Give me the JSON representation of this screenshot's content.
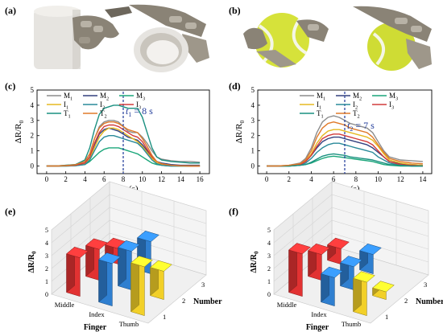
{
  "panels": {
    "a": "(a)",
    "b": "(b)",
    "c": "(c)",
    "d": "(d)",
    "e": "(e)",
    "f": "(f)"
  },
  "chart_data": [
    {
      "type": "line",
      "panel": "(c)",
      "xlabel": "Time (s)",
      "ylabel": "ΔR/R",
      "ylabel_sub": "0",
      "xlim": [
        -1,
        17
      ],
      "ylim": [
        -0.5,
        5
      ],
      "xticks": [
        0,
        2,
        4,
        6,
        8,
        10,
        12,
        14,
        16
      ],
      "yticks": [
        0,
        1,
        2,
        3,
        4,
        5
      ],
      "annotation": {
        "prefix": "t",
        "sub": "1",
        "suffix": " = 8 s",
        "x": 8
      },
      "legend": [
        {
          "name": "M",
          "sub": "1",
          "color": "#8c8c8c"
        },
        {
          "name": "M",
          "sub": "2",
          "color": "#33407f"
        },
        {
          "name": "M",
          "sub": "3",
          "color": "#1aa67a"
        },
        {
          "name": "I",
          "sub": "1",
          "color": "#e5b820"
        },
        {
          "name": "I",
          "sub": "2",
          "color": "#2a8a9a"
        },
        {
          "name": "I",
          "sub": "3",
          "color": "#d23b3b"
        },
        {
          "name": "T",
          "sub": "1",
          "color": "#1a9080"
        },
        {
          "name": "T",
          "sub": "2",
          "color": "#e07a2a"
        }
      ],
      "x": [
        0,
        1,
        2,
        3,
        4,
        4.5,
        5,
        5.5,
        6,
        6.5,
        7,
        7.5,
        8,
        8.5,
        9,
        9.5,
        10,
        10.5,
        11,
        11.5,
        12,
        12.5,
        13,
        14,
        15,
        16
      ],
      "series": [
        {
          "name": "M1",
          "color": "#8c8c8c",
          "values": [
            0,
            0,
            0.05,
            0.1,
            0.3,
            0.8,
            1.8,
            2.6,
            2.9,
            3.0,
            3.0,
            2.9,
            2.6,
            2.3,
            2.2,
            2.2,
            1.9,
            1.5,
            1.0,
            0.6,
            0.45,
            0.4,
            0.35,
            0.3,
            0.3,
            0.25
          ]
        },
        {
          "name": "M2",
          "color": "#33407f",
          "values": [
            0,
            0,
            0.02,
            0.05,
            0.2,
            0.6,
            1.4,
            2.1,
            2.4,
            2.5,
            2.4,
            2.3,
            2.1,
            1.9,
            1.8,
            1.7,
            1.4,
            1.0,
            0.6,
            0.3,
            0.2,
            0.15,
            0.1,
            0.05,
            0.05,
            0.05
          ]
        },
        {
          "name": "M3",
          "color": "#1aa67a",
          "values": [
            0,
            0,
            0,
            0.02,
            0.1,
            0.3,
            0.6,
            0.9,
            1.1,
            1.2,
            1.2,
            1.2,
            1.1,
            1.0,
            0.9,
            0.8,
            0.6,
            0.4,
            0.2,
            0.1,
            0.05,
            0.02,
            0,
            0,
            0,
            0
          ]
        },
        {
          "name": "I1",
          "color": "#e5b820",
          "values": [
            0,
            0,
            0.02,
            0.05,
            0.15,
            0.5,
            1.2,
            1.9,
            2.3,
            2.5,
            2.5,
            2.4,
            2.2,
            2.0,
            1.8,
            1.6,
            1.3,
            0.9,
            0.5,
            0.2,
            0.1,
            0.05,
            0.02,
            0,
            0,
            0
          ]
        },
        {
          "name": "I2",
          "color": "#2a8a9a",
          "values": [
            0,
            0,
            0,
            0.03,
            0.1,
            0.4,
            1.0,
            1.6,
            1.9,
            2.0,
            2.0,
            1.9,
            1.8,
            1.7,
            1.6,
            1.5,
            1.2,
            0.8,
            0.4,
            0.15,
            0.05,
            0.02,
            0,
            0,
            0,
            0
          ]
        },
        {
          "name": "I3",
          "color": "#d23b3b",
          "values": [
            0,
            0,
            0.02,
            0.05,
            0.2,
            0.6,
            1.5,
            2.2,
            2.6,
            2.7,
            2.7,
            2.6,
            2.4,
            2.2,
            2.0,
            1.9,
            1.6,
            1.1,
            0.6,
            0.3,
            0.15,
            0.1,
            0.05,
            0.02,
            0,
            0
          ]
        },
        {
          "name": "T1",
          "color": "#1a9080",
          "values": [
            0,
            0,
            0.05,
            0.1,
            0.4,
            1.2,
            2.4,
            3.4,
            3.8,
            3.9,
            4.0,
            4.0,
            3.9,
            3.8,
            3.8,
            3.8,
            3.2,
            2.2,
            1.2,
            0.6,
            0.4,
            0.35,
            0.3,
            0.25,
            0.2,
            0.2
          ]
        },
        {
          "name": "T2",
          "color": "#e07a2a",
          "values": [
            0,
            0,
            0.03,
            0.08,
            0.3,
            0.8,
            1.8,
            2.5,
            2.8,
            2.9,
            2.9,
            2.8,
            2.6,
            2.4,
            2.3,
            2.2,
            1.8,
            1.3,
            0.7,
            0.3,
            0.15,
            0.1,
            0.05,
            0.02,
            0,
            0
          ]
        }
      ]
    },
    {
      "type": "line",
      "panel": "(d)",
      "xlabel": "Time (s)",
      "ylabel": "ΔR/R",
      "ylabel_sub": "0",
      "xlim": [
        -0.8,
        14.8
      ],
      "ylim": [
        -0.5,
        5
      ],
      "xticks": [
        0,
        2,
        4,
        6,
        8,
        10,
        12,
        14
      ],
      "yticks": [
        0,
        1,
        2,
        3,
        4,
        5
      ],
      "annotation": {
        "prefix": "t",
        "sub": "2",
        "suffix": " = 7 s",
        "x": 7
      },
      "legend": [
        {
          "name": "M",
          "sub": "1",
          "color": "#8c8c8c"
        },
        {
          "name": "M",
          "sub": "2",
          "color": "#33407f"
        },
        {
          "name": "M",
          "sub": "3",
          "color": "#1aa67a"
        },
        {
          "name": "I",
          "sub": "1",
          "color": "#e5b820"
        },
        {
          "name": "I",
          "sub": "2",
          "color": "#2a8a9a"
        },
        {
          "name": "I",
          "sub": "3",
          "color": "#d23b3b"
        },
        {
          "name": "T",
          "sub": "1",
          "color": "#1a9080"
        },
        {
          "name": "T",
          "sub": "2",
          "color": "#e07a2a"
        }
      ],
      "x": [
        0,
        1,
        2,
        3,
        3.5,
        4,
        4.5,
        5,
        5.5,
        6,
        6.5,
        7,
        7.5,
        8,
        8.5,
        9,
        9.5,
        10,
        10.5,
        11,
        12,
        13,
        14
      ],
      "series": [
        {
          "name": "M1",
          "color": "#8c8c8c",
          "values": [
            0,
            0,
            0.05,
            0.2,
            0.5,
            1.2,
            2.2,
            2.9,
            3.2,
            3.3,
            3.2,
            3.0,
            2.8,
            2.7,
            2.6,
            2.5,
            2.2,
            1.6,
            1.0,
            0.6,
            0.4,
            0.35,
            0.3
          ]
        },
        {
          "name": "M2",
          "color": "#33407f",
          "values": [
            0,
            0,
            0.02,
            0.1,
            0.3,
            0.7,
            1.2,
            1.6,
            1.8,
            1.9,
            1.9,
            1.8,
            1.7,
            1.6,
            1.5,
            1.4,
            1.2,
            0.9,
            0.6,
            0.3,
            0.15,
            0.1,
            0.05
          ]
        },
        {
          "name": "M3",
          "color": "#1aa67a",
          "values": [
            0,
            0,
            0,
            0.05,
            0.1,
            0.2,
            0.35,
            0.5,
            0.6,
            0.65,
            0.6,
            0.55,
            0.5,
            0.45,
            0.4,
            0.35,
            0.3,
            0.2,
            0.1,
            0.05,
            0,
            0,
            0
          ]
        },
        {
          "name": "I1",
          "color": "#e5b820",
          "values": [
            0,
            0,
            0.02,
            0.1,
            0.3,
            0.8,
            1.5,
            2.0,
            2.3,
            2.4,
            2.4,
            2.3,
            2.2,
            2.1,
            2.0,
            1.9,
            1.7,
            1.3,
            0.8,
            0.4,
            0.2,
            0.1,
            0.05
          ]
        },
        {
          "name": "I2",
          "color": "#2a8a9a",
          "values": [
            0,
            0,
            0,
            0.05,
            0.2,
            0.5,
            0.9,
            1.2,
            1.4,
            1.5,
            1.5,
            1.4,
            1.3,
            1.2,
            1.1,
            1.0,
            0.9,
            0.6,
            0.4,
            0.2,
            0.05,
            0,
            0
          ]
        },
        {
          "name": "I3",
          "color": "#d23b3b",
          "values": [
            0,
            0,
            0.02,
            0.1,
            0.3,
            0.7,
            1.3,
            1.8,
            2.0,
            2.1,
            2.1,
            2.0,
            1.9,
            1.8,
            1.7,
            1.6,
            1.4,
            1.0,
            0.6,
            0.3,
            0.1,
            0.05,
            0
          ]
        },
        {
          "name": "T1",
          "color": "#1a9080",
          "values": [
            0,
            0,
            0,
            0.05,
            0.1,
            0.25,
            0.45,
            0.65,
            0.75,
            0.8,
            0.75,
            0.7,
            0.6,
            0.55,
            0.5,
            0.45,
            0.4,
            0.3,
            0.2,
            0.1,
            0.05,
            0,
            0
          ]
        },
        {
          "name": "T2",
          "color": "#e07a2a",
          "values": [
            0,
            0,
            0.05,
            0.15,
            0.4,
            1.0,
            1.9,
            2.5,
            2.8,
            2.9,
            2.8,
            2.7,
            2.5,
            2.4,
            2.3,
            2.2,
            1.9,
            1.4,
            0.9,
            0.5,
            0.3,
            0.2,
            0.15
          ]
        }
      ]
    },
    {
      "type": "bar",
      "panel": "(e)",
      "ylabel": "ΔR/R",
      "ylabel_sub": "0",
      "zticks": [
        0,
        1,
        2,
        3,
        4,
        5
      ],
      "finger_axis_label": "Finger",
      "finger_labels": [
        "Middle",
        "Index",
        "Thumb"
      ],
      "number_axis_label": "Number",
      "number_labels": [
        "1",
        "2",
        "3"
      ],
      "series": [
        {
          "name": "Middle",
          "color": "#e23232",
          "values": [
            3.0,
            2.4,
            1.2
          ]
        },
        {
          "name": "Index",
          "color": "#2f7fd0",
          "values": [
            3.3,
            3.0,
            2.5
          ]
        },
        {
          "name": "Thumb",
          "color": "#f2d028",
          "values": [
            3.8,
            2.2,
            0.0
          ]
        }
      ]
    },
    {
      "type": "bar",
      "panel": "(f)",
      "ylabel": "ΔR/R",
      "ylabel_sub": "0",
      "zticks": [
        0,
        1,
        2,
        3,
        4,
        5
      ],
      "finger_axis_label": "Finger",
      "finger_labels": [
        "Middle",
        "Index",
        "Thumb"
      ],
      "number_axis_label": "Number",
      "number_labels": [
        "1",
        "2",
        "3"
      ],
      "series": [
        {
          "name": "Middle",
          "color": "#e23232",
          "values": [
            3.3,
            2.0,
            1.2
          ]
        },
        {
          "name": "Index",
          "color": "#2f7fd0",
          "values": [
            2.2,
            1.8,
            1.5
          ]
        },
        {
          "name": "Thumb",
          "color": "#f2d028",
          "values": [
            2.6,
            0.6,
            0.0
          ]
        }
      ]
    }
  ]
}
